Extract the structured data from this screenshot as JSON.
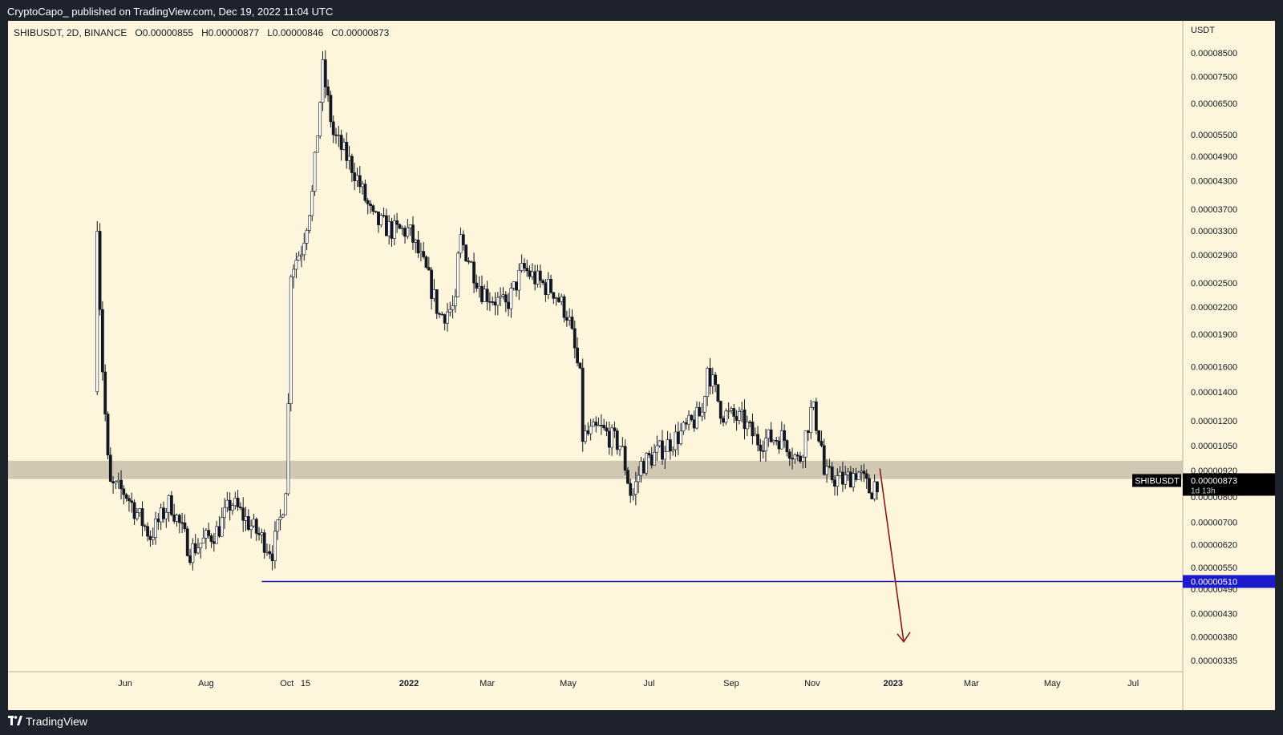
{
  "header": {
    "publisher_line": "CryptoCapo_ published on TradingView.com, Dec 19, 2022 11:04 UTC"
  },
  "legend": {
    "symbol": "SHIBUSDT, 2D, BINANCE",
    "open": "O0.00000855",
    "high": "H0.00000877",
    "low": "L0.00000846",
    "close": "C0.00000873"
  },
  "footer": {
    "brand": "TradingView"
  },
  "colors": {
    "background": "#fdf6dc",
    "candle_up": "#ffffff",
    "candle_down": "#131722",
    "support_line": "#1a1acc",
    "arrow": "#8b1a1a",
    "zone": "#c9c0ad"
  },
  "chart_data": {
    "type": "candlestick",
    "scale": "log",
    "currency_label": "USDT",
    "y_ticks": [
      {
        "v": 8.5e-05,
        "label": "0.00008500"
      },
      {
        "v": 7.5e-05,
        "label": "0.00007500"
      },
      {
        "v": 6.5e-05,
        "label": "0.00006500"
      },
      {
        "v": 5.5e-05,
        "label": "0.00005500"
      },
      {
        "v": 4.9e-05,
        "label": "0.00004900"
      },
      {
        "v": 4.3e-05,
        "label": "0.00004300"
      },
      {
        "v": 3.7e-05,
        "label": "0.00003700"
      },
      {
        "v": 3.3e-05,
        "label": "0.00003300"
      },
      {
        "v": 2.9e-05,
        "label": "0.00002900"
      },
      {
        "v": 2.5e-05,
        "label": "0.00002500"
      },
      {
        "v": 2.2e-05,
        "label": "0.00002200"
      },
      {
        "v": 1.9e-05,
        "label": "0.00001900"
      },
      {
        "v": 1.6e-05,
        "label": "0.00001600"
      },
      {
        "v": 1.4e-05,
        "label": "0.00001400"
      },
      {
        "v": 1.2e-05,
        "label": "0.00001200"
      },
      {
        "v": 1.05e-05,
        "label": "0.00001050"
      },
      {
        "v": 9.2e-06,
        "label": "0.00000920"
      },
      {
        "v": 8e-06,
        "label": "0.00000800"
      },
      {
        "v": 7e-06,
        "label": "0.00000700"
      },
      {
        "v": 6.2e-06,
        "label": "0.00000620"
      },
      {
        "v": 5.5e-06,
        "label": "0.00000550"
      },
      {
        "v": 4.9e-06,
        "label": "0.00000490"
      },
      {
        "v": 4.3e-06,
        "label": "0.00000430"
      },
      {
        "v": 3.8e-06,
        "label": "0.00000380"
      },
      {
        "v": 3.35e-06,
        "label": "0.00000335"
      }
    ],
    "x_ticks": [
      {
        "label": "Jun",
        "date": "2021-06-01",
        "bold": false
      },
      {
        "label": "Aug",
        "date": "2021-08-01",
        "bold": false
      },
      {
        "label": "Oct",
        "date": "2021-10-01",
        "bold": false
      },
      {
        "label": "15",
        "date": "2021-10-15",
        "bold": false
      },
      {
        "label": "2022",
        "date": "2022-01-01",
        "bold": true
      },
      {
        "label": "Mar",
        "date": "2022-03-01",
        "bold": false
      },
      {
        "label": "May",
        "date": "2022-05-01",
        "bold": false
      },
      {
        "label": "Jul",
        "date": "2022-07-01",
        "bold": false
      },
      {
        "label": "Sep",
        "date": "2022-09-01",
        "bold": false
      },
      {
        "label": "Nov",
        "date": "2022-11-01",
        "bold": false
      },
      {
        "label": "2023",
        "date": "2023-01-01",
        "bold": true
      },
      {
        "label": "Mar",
        "date": "2023-03-01",
        "bold": false
      },
      {
        "label": "May",
        "date": "2023-05-01",
        "bold": false
      },
      {
        "label": "Jul",
        "date": "2023-07-01",
        "bold": false
      }
    ],
    "price_path": [
      {
        "date": "2021-05-10",
        "price": 1.4e-05
      },
      {
        "date": "2021-05-11",
        "price": 3.5e-05
      },
      {
        "date": "2021-05-14",
        "price": 1.8e-05
      },
      {
        "date": "2021-05-20",
        "price": 8.5e-06
      },
      {
        "date": "2021-06-01",
        "price": 8.2e-06
      },
      {
        "date": "2021-06-20",
        "price": 6.5e-06
      },
      {
        "date": "2021-07-05",
        "price": 7.8e-06
      },
      {
        "date": "2021-07-20",
        "price": 6e-06
      },
      {
        "date": "2021-08-10",
        "price": 6.7e-06
      },
      {
        "date": "2021-08-20",
        "price": 7.8e-06
      },
      {
        "date": "2021-09-05",
        "price": 6.8e-06
      },
      {
        "date": "2021-09-20",
        "price": 6e-06
      },
      {
        "date": "2021-09-27",
        "price": 7.3e-06
      },
      {
        "date": "2021-10-01",
        "price": 9e-06
      },
      {
        "date": "2021-10-04",
        "price": 2.7e-05
      },
      {
        "date": "2021-10-12",
        "price": 3e-05
      },
      {
        "date": "2021-10-20",
        "price": 4e-05
      },
      {
        "date": "2021-10-28",
        "price": 7.8e-05
      },
      {
        "date": "2021-11-05",
        "price": 5.5e-05
      },
      {
        "date": "2021-11-20",
        "price": 4.6e-05
      },
      {
        "date": "2021-12-05",
        "price": 3.5e-05
      },
      {
        "date": "2021-12-20",
        "price": 3.3e-05
      },
      {
        "date": "2022-01-01",
        "price": 3.3e-05
      },
      {
        "date": "2022-01-15",
        "price": 2.6e-05
      },
      {
        "date": "2022-01-24",
        "price": 2.1e-05
      },
      {
        "date": "2022-02-05",
        "price": 2.2e-05
      },
      {
        "date": "2022-02-08",
        "price": 3.2e-05
      },
      {
        "date": "2022-02-25",
        "price": 2.4e-05
      },
      {
        "date": "2022-03-15",
        "price": 2.2e-05
      },
      {
        "date": "2022-03-28",
        "price": 2.7e-05
      },
      {
        "date": "2022-04-10",
        "price": 2.5e-05
      },
      {
        "date": "2022-04-20",
        "price": 2.4e-05
      },
      {
        "date": "2022-05-01",
        "price": 2.1e-05
      },
      {
        "date": "2022-05-10",
        "price": 1.5e-05
      },
      {
        "date": "2022-05-12",
        "price": 1.1e-05
      },
      {
        "date": "2022-05-25",
        "price": 1.15e-05
      },
      {
        "date": "2022-06-10",
        "price": 1.05e-05
      },
      {
        "date": "2022-06-18",
        "price": 7.9e-06
      },
      {
        "date": "2022-06-25",
        "price": 9.5e-06
      },
      {
        "date": "2022-07-05",
        "price": 1e-05
      },
      {
        "date": "2022-07-25",
        "price": 1.12e-05
      },
      {
        "date": "2022-08-10",
        "price": 1.25e-05
      },
      {
        "date": "2022-08-14",
        "price": 1.6e-05
      },
      {
        "date": "2022-08-25",
        "price": 1.25e-05
      },
      {
        "date": "2022-09-10",
        "price": 1.2e-05
      },
      {
        "date": "2022-09-20",
        "price": 1.08e-05
      },
      {
        "date": "2022-10-10",
        "price": 1.1e-05
      },
      {
        "date": "2022-10-22",
        "price": 9.6e-06
      },
      {
        "date": "2022-10-28",
        "price": 1.15e-05
      },
      {
        "date": "2022-11-01",
        "price": 1.3e-05
      },
      {
        "date": "2022-11-08",
        "price": 1.05e-05
      },
      {
        "date": "2022-11-10",
        "price": 9e-06
      },
      {
        "date": "2022-11-25",
        "price": 8.7e-06
      },
      {
        "date": "2022-12-05",
        "price": 9.2e-06
      },
      {
        "date": "2022-12-15",
        "price": 8.2e-06
      },
      {
        "date": "2022-12-19",
        "price": 8.73e-06
      }
    ],
    "annotations": {
      "resistance_zone": {
        "low": 8.8e-06,
        "high": 9.7e-06
      },
      "support_line": {
        "value": 5.1e-06,
        "label": "0.00000510",
        "from": "2021-09-12"
      },
      "last_price": {
        "symbol": "SHIBUSDT",
        "label": "0.00000873",
        "countdown": "1d 13h"
      },
      "projection_arrow": {
        "from": {
          "date": "2022-12-22",
          "price": 9.3e-06
        },
        "to": {
          "date": "2023-01-09",
          "price": 3.7e-06
        }
      }
    }
  }
}
